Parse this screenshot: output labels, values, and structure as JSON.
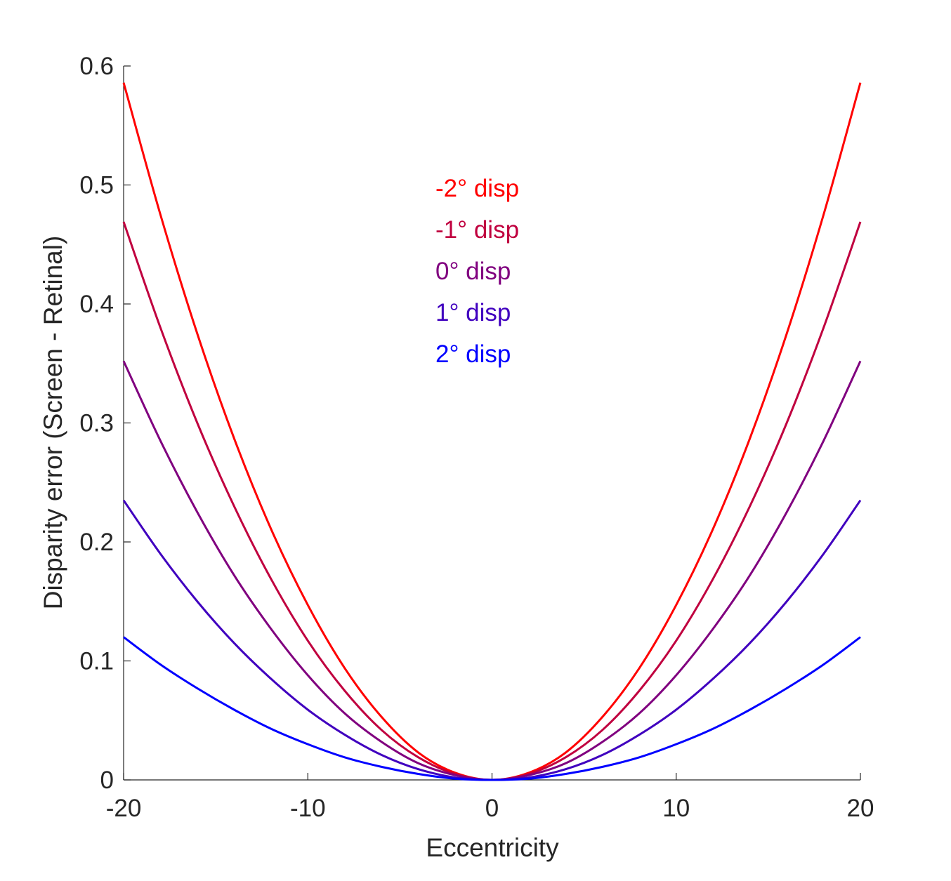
{
  "chart_data": {
    "type": "line",
    "title": "",
    "xlabel": "Eccentricity",
    "ylabel": "Disparity error (Screen - Retinal)",
    "xlim": [
      -20,
      20
    ],
    "ylim": [
      0,
      0.6
    ],
    "xticks": [
      -20,
      -10,
      0,
      10,
      20
    ],
    "xtick_labels": [
      "-20",
      "-10",
      "0",
      "10",
      "20"
    ],
    "yticks": [
      0,
      0.1,
      0.2,
      0.3,
      0.4,
      0.5,
      0.6
    ],
    "ytick_labels": [
      "0",
      "0.1",
      "0.2",
      "0.3",
      "0.4",
      "0.5",
      "0.6"
    ],
    "grid": false,
    "legend_position": "top-center (text labels)",
    "x": [
      -20,
      -18,
      -16,
      -14,
      -12,
      -10,
      -8,
      -6,
      -4,
      -2,
      0,
      2,
      4,
      6,
      8,
      10,
      12,
      14,
      16,
      18,
      20
    ],
    "series": [
      {
        "name": "-2° disp",
        "color": "#ff0000",
        "values": [
          0.586,
          0.475,
          0.375,
          0.287,
          0.211,
          0.147,
          0.094,
          0.053,
          0.023,
          0.006,
          0.0,
          0.006,
          0.023,
          0.053,
          0.094,
          0.147,
          0.211,
          0.287,
          0.375,
          0.475,
          0.586
        ]
      },
      {
        "name": "-1° disp",
        "color": "#c0003f",
        "values": [
          0.469,
          0.38,
          0.3,
          0.23,
          0.169,
          0.117,
          0.075,
          0.042,
          0.019,
          0.005,
          0.0,
          0.005,
          0.019,
          0.042,
          0.075,
          0.117,
          0.169,
          0.23,
          0.3,
          0.38,
          0.469
        ]
      },
      {
        "name": "0° disp",
        "color": "#80007f",
        "values": [
          0.352,
          0.285,
          0.225,
          0.172,
          0.127,
          0.088,
          0.056,
          0.032,
          0.014,
          0.004,
          0.0,
          0.004,
          0.014,
          0.032,
          0.056,
          0.088,
          0.127,
          0.172,
          0.225,
          0.285,
          0.352
        ]
      },
      {
        "name": "1° disp",
        "color": "#4000bf",
        "values": [
          0.235,
          0.19,
          0.15,
          0.115,
          0.085,
          0.059,
          0.038,
          0.021,
          0.009,
          0.002,
          0.0,
          0.002,
          0.009,
          0.021,
          0.038,
          0.059,
          0.085,
          0.115,
          0.15,
          0.19,
          0.235
        ]
      },
      {
        "name": "2° disp",
        "color": "#0000ff",
        "values": [
          0.12,
          0.097,
          0.077,
          0.059,
          0.043,
          0.03,
          0.019,
          0.011,
          0.005,
          0.001,
          0.0,
          0.001,
          0.005,
          0.011,
          0.019,
          0.03,
          0.043,
          0.059,
          0.077,
          0.097,
          0.12
        ]
      }
    ]
  }
}
